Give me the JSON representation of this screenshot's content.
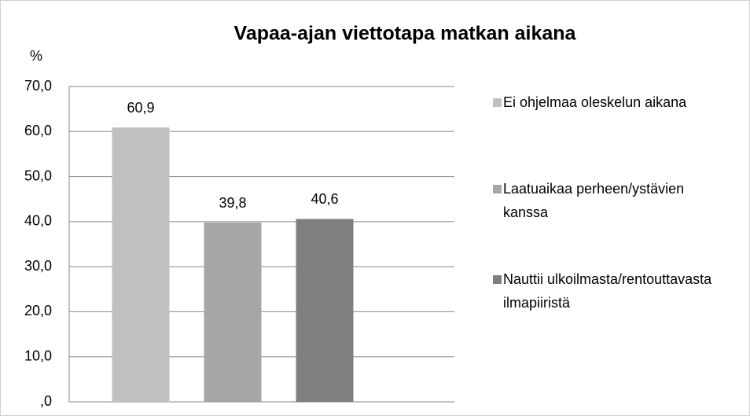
{
  "chart_data": {
    "type": "bar",
    "title": "Vapaa-ajan viettotapa  matkan aikana",
    "y_label": "%",
    "categories": [
      null
    ],
    "series": [
      {
        "name": "Ei ohjelmaa oleskelun aikana",
        "color": "#c0c0c0",
        "values": [
          60.9
        ],
        "value_labels": [
          "60,9"
        ]
      },
      {
        "name": "Laatuaikaa perheen/ystävien kanssa",
        "color": "#a6a6a6",
        "values": [
          39.8
        ],
        "value_labels": [
          "39,8"
        ]
      },
      {
        "name": "Nauttii ulkoilmasta/rentouttavasta ilmapiiristä",
        "color": "#7f7f7f",
        "values": [
          40.6
        ],
        "value_labels": [
          "40,6"
        ]
      }
    ],
    "ylim": [
      0,
      70
    ],
    "yticks": [
      {
        "value": 0,
        "label": ",0"
      },
      {
        "value": 10,
        "label": "10,0"
      },
      {
        "value": 20,
        "label": "20,0"
      },
      {
        "value": 30,
        "label": "30,0"
      },
      {
        "value": 40,
        "label": "40,0"
      },
      {
        "value": 50,
        "label": "50,0"
      },
      {
        "value": 60,
        "label": "60,0"
      },
      {
        "value": 70,
        "label": "70,0"
      }
    ],
    "grid": true,
    "legend": "right"
  }
}
